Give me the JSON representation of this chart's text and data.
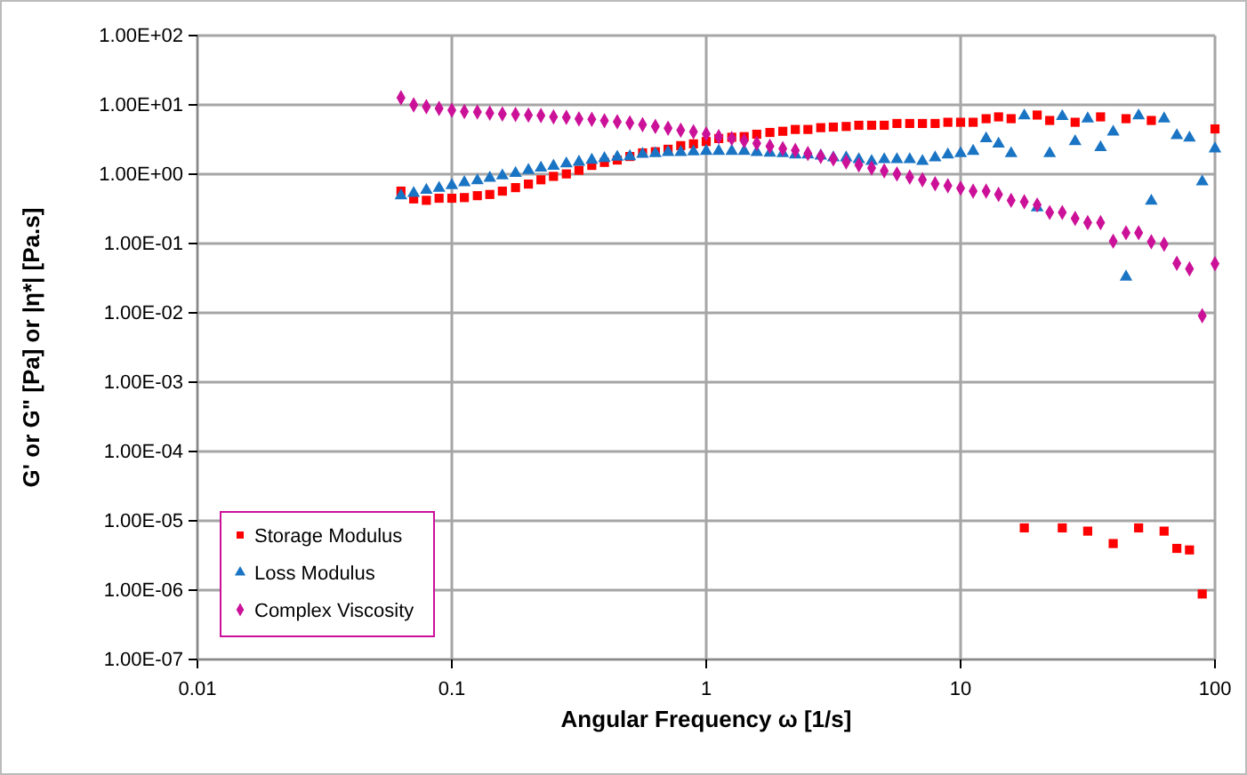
{
  "chart_data": {
    "type": "scatter",
    "xlabel": "Angular Frequency ω [1/s]",
    "ylabel": "G' or G\" [Pa] or |η*| [Pa.s]",
    "log": "xy",
    "grid": true,
    "legend": "bottom left",
    "x": [
      0.0631,
      0.0708,
      0.0794,
      0.0891,
      0.1,
      0.112,
      0.126,
      0.141,
      0.158,
      0.178,
      0.2,
      0.224,
      0.251,
      0.282,
      0.316,
      0.355,
      0.398,
      0.447,
      0.501,
      0.562,
      0.631,
      0.708,
      0.794,
      0.891,
      1,
      1.12,
      1.26,
      1.41,
      1.58,
      1.78,
      2,
      2.24,
      2.51,
      2.82,
      3.16,
      3.55,
      3.98,
      4.47,
      5.01,
      5.62,
      6.31,
      7.08,
      7.94,
      8.91,
      10,
      11.2,
      12.6,
      14.1,
      15.8,
      17.8,
      20,
      22.4,
      25.1,
      28.2,
      31.6,
      35.5,
      39.8,
      44.7,
      50.1,
      56.2,
      63.1,
      70.8,
      79.4,
      89.1,
      100
    ],
    "xlim": [
      0.01,
      100
    ],
    "xticks": [
      0.01,
      0.1,
      1,
      10,
      100
    ],
    "ylim": [
      1e-07,
      100
    ],
    "yticks": [
      {
        "value": 1e-07,
        "label": "1.00E-07"
      },
      {
        "value": 1e-06,
        "label": "1.00E-06"
      },
      {
        "value": 1e-05,
        "label": "1.00E-05"
      },
      {
        "value": 0.0001,
        "label": "1.00E-04"
      },
      {
        "value": 0.001,
        "label": "1.00E-03"
      },
      {
        "value": 0.01,
        "label": "1.00E-02"
      },
      {
        "value": 0.1,
        "label": "1.00E-01"
      },
      {
        "value": 1,
        "label": "1.00E+00"
      },
      {
        "value": 10,
        "label": "1.00E+01"
      },
      {
        "value": 100,
        "label": "1.00E+02"
      }
    ],
    "series": [
      {
        "name": "Storage Modulus",
        "color": "#ff0000",
        "marker": "square",
        "values": [
          0.57,
          0.44,
          0.42,
          0.45,
          0.45,
          0.46,
          0.49,
          0.51,
          0.57,
          0.64,
          0.72,
          0.83,
          0.93,
          1.01,
          1.14,
          1.34,
          1.48,
          1.6,
          1.8,
          2.03,
          2.11,
          2.29,
          2.58,
          2.74,
          2.96,
          3.27,
          3.41,
          3.48,
          3.77,
          4.0,
          4.16,
          4.42,
          4.42,
          4.69,
          4.78,
          4.88,
          5.08,
          5.08,
          5.08,
          5.39,
          5.39,
          5.39,
          5.39,
          5.61,
          5.61,
          5.61,
          6.32,
          6.71,
          6.32,
          7.9e-06,
          7.13,
          5.96,
          7.9e-06,
          5.61,
          7.1e-06,
          6.71,
          4.7e-06,
          6.32,
          7.9e-06,
          5.96,
          7.1e-06,
          4e-06,
          3.8e-06,
          8.8e-07,
          4.5
        ]
      },
      {
        "name": "Loss Modulus",
        "color": "#1a74c4",
        "marker": "triangle",
        "values": [
          0.49,
          0.53,
          0.59,
          0.63,
          0.69,
          0.76,
          0.81,
          0.88,
          0.95,
          1.03,
          1.14,
          1.23,
          1.31,
          1.42,
          1.5,
          1.6,
          1.69,
          1.77,
          1.8,
          1.95,
          1.99,
          2.07,
          2.07,
          2.11,
          2.15,
          2.15,
          2.15,
          2.15,
          2.07,
          2.03,
          1.99,
          1.91,
          1.91,
          1.84,
          1.73,
          1.73,
          1.63,
          1.54,
          1.63,
          1.63,
          1.63,
          1.54,
          1.73,
          1.91,
          1.99,
          2.15,
          3.27,
          2.74,
          1.99,
          6.98,
          0.33,
          1.99,
          6.84,
          2.96,
          6.32,
          2.43,
          4.08,
          0.033,
          6.98,
          0.41,
          6.32,
          3.62,
          3.34,
          0.78,
          2.33
        ]
      },
      {
        "name": "Complex Viscosity",
        "color": "#cc1199",
        "marker": "diamond",
        "values": [
          12.7,
          10,
          9.4,
          8.9,
          8.4,
          8.0,
          7.9,
          7.6,
          7.4,
          7.3,
          7.1,
          7.0,
          6.7,
          6.6,
          6.3,
          6.2,
          5.9,
          5.7,
          5.5,
          5.2,
          4.9,
          4.6,
          4.3,
          4.1,
          3.8,
          3.48,
          3.27,
          3.02,
          2.79,
          2.53,
          2.33,
          2.2,
          1.99,
          1.8,
          1.66,
          1.5,
          1.36,
          1.23,
          1.12,
          1.01,
          0.91,
          0.83,
          0.73,
          0.68,
          0.63,
          0.57,
          0.57,
          0.51,
          0.42,
          0.4,
          0.36,
          0.28,
          0.28,
          0.23,
          0.2,
          0.2,
          0.108,
          0.143,
          0.143,
          0.106,
          0.098,
          0.052,
          0.043,
          0.0091,
          0.051
        ]
      }
    ]
  }
}
